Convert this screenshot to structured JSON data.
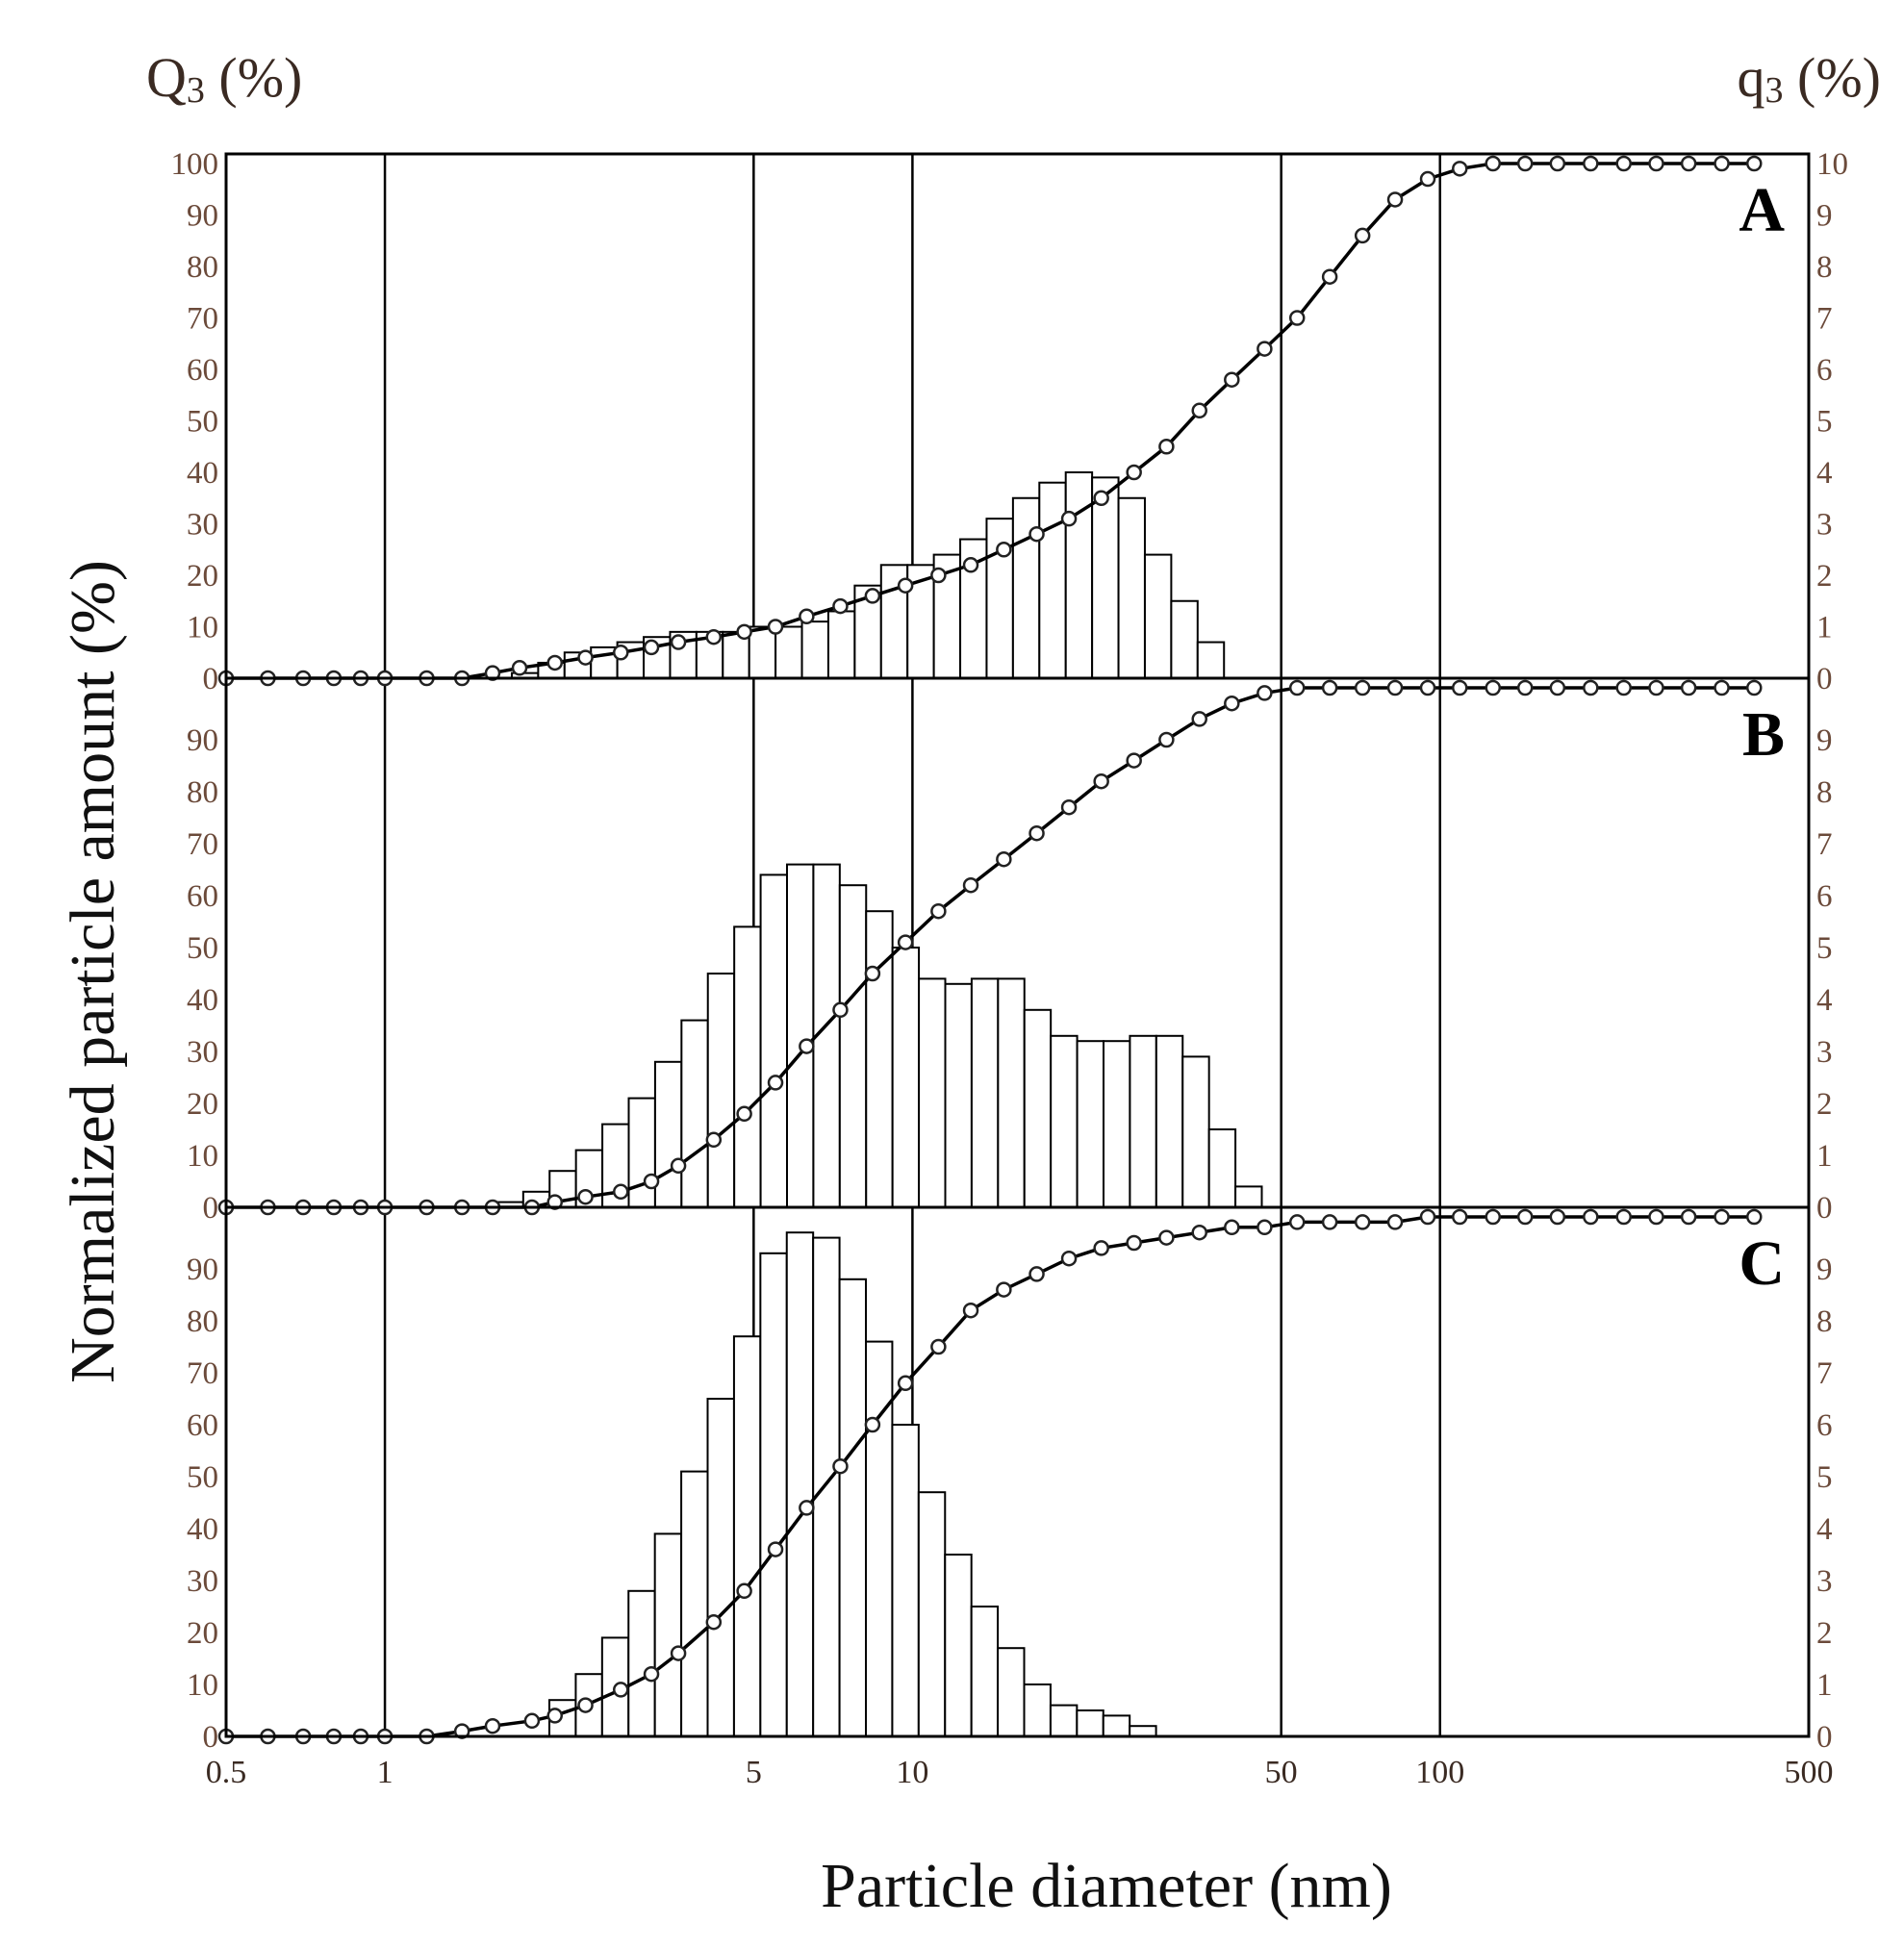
{
  "chart_data": {
    "type": "bar+line",
    "xlabel": "Particle diameter (nm)",
    "ylabel": "Normalized particle amount (%)",
    "left_axis_title": "Q3 (%)",
    "left_axis_title_main": "Q",
    "left_axis_title_sub": "3",
    "left_axis_title_rest": " (%)",
    "right_axis_title_main": "q",
    "right_axis_title_sub": "3",
    "right_axis_title_rest": " (%)",
    "x_scale": "log",
    "xlim": [
      0.5,
      500
    ],
    "x_ticks": [
      0.5,
      1,
      5,
      10,
      50,
      100,
      500
    ],
    "x_tick_labels": [
      "0.5",
      "1",
      "5",
      "10",
      "50",
      "100",
      "500"
    ],
    "x_gridlines": [
      1,
      5,
      10,
      50,
      100
    ],
    "panels": [
      {
        "label": "A",
        "ylim": [
          0,
          100
        ],
        "left_ticks": [
          "0",
          "10",
          "20",
          "30",
          "40",
          "50",
          "60",
          "70",
          "80",
          "90",
          "100"
        ],
        "right_ticks": [
          "0",
          "1",
          "2",
          "3",
          "4",
          "5",
          "6",
          "7",
          "8",
          "9",
          "10"
        ],
        "histogram_q3": [
          0.1,
          0.3,
          0.5,
          0.6,
          0.7,
          0.8,
          0.9,
          0.9,
          0.9,
          1.0,
          1.0,
          1.1,
          1.3,
          1.8,
          2.2,
          2.2,
          2.4,
          2.7,
          3.1,
          3.5,
          3.8,
          4.0,
          3.9,
          3.5,
          2.4,
          1.5,
          0.7
        ],
        "cumulative_Q3": [
          [
            0.5,
            0
          ],
          [
            0.6,
            0
          ],
          [
            0.7,
            0
          ],
          [
            0.8,
            0
          ],
          [
            0.9,
            0
          ],
          [
            1.0,
            0
          ],
          [
            1.2,
            0
          ],
          [
            1.4,
            0
          ],
          [
            1.6,
            1
          ],
          [
            1.8,
            2
          ],
          [
            2.1,
            3
          ],
          [
            2.4,
            4
          ],
          [
            2.8,
            5
          ],
          [
            3.2,
            6
          ],
          [
            3.6,
            7
          ],
          [
            4.2,
            8
          ],
          [
            4.8,
            9
          ],
          [
            5.5,
            10
          ],
          [
            6.3,
            12
          ],
          [
            7.3,
            14
          ],
          [
            8.4,
            16
          ],
          [
            9.7,
            18
          ],
          [
            11.2,
            20
          ],
          [
            12.9,
            22
          ],
          [
            14.9,
            25
          ],
          [
            17.2,
            28
          ],
          [
            19.8,
            31
          ],
          [
            22.8,
            35
          ],
          [
            26.3,
            40
          ],
          [
            30.3,
            45
          ],
          [
            35,
            52
          ],
          [
            40.3,
            58
          ],
          [
            46.5,
            64
          ],
          [
            53.6,
            70
          ],
          [
            61.8,
            78
          ],
          [
            71.3,
            86
          ],
          [
            82.2,
            93
          ],
          [
            94.8,
            97
          ],
          [
            109,
            99
          ],
          [
            126,
            100
          ],
          [
            145,
            100
          ],
          [
            167,
            100
          ],
          [
            193,
            100
          ],
          [
            223,
            100
          ],
          [
            257,
            100
          ],
          [
            296,
            100
          ],
          [
            342,
            100
          ],
          [
            394,
            100
          ]
        ]
      },
      {
        "label": "B",
        "ylim": [
          0,
          100
        ],
        "left_ticks": [
          "0",
          "10",
          "20",
          "30",
          "40",
          "50",
          "60",
          "70",
          "80",
          "90"
        ],
        "right_ticks": [
          "0",
          "1",
          "2",
          "3",
          "4",
          "5",
          "6",
          "7",
          "8",
          "9"
        ],
        "histogram_q3": [
          0.1,
          0.3,
          0.7,
          1.1,
          1.6,
          2.1,
          2.8,
          3.6,
          4.5,
          5.4,
          6.4,
          6.6,
          6.6,
          6.2,
          5.7,
          5.0,
          4.4,
          4.3,
          4.4,
          4.4,
          3.8,
          3.3,
          3.2,
          3.2,
          3.3,
          3.3,
          2.9,
          1.5,
          0.4
        ],
        "cumulative_Q3": [
          [
            0.5,
            0
          ],
          [
            0.6,
            0
          ],
          [
            0.7,
            0
          ],
          [
            0.8,
            0
          ],
          [
            0.9,
            0
          ],
          [
            1.0,
            0
          ],
          [
            1.2,
            0
          ],
          [
            1.4,
            0
          ],
          [
            1.6,
            0
          ],
          [
            1.9,
            0
          ],
          [
            2.1,
            1
          ],
          [
            2.4,
            2
          ],
          [
            2.8,
            3
          ],
          [
            3.2,
            5
          ],
          [
            3.6,
            8
          ],
          [
            4.2,
            13
          ],
          [
            4.8,
            18
          ],
          [
            5.5,
            24
          ],
          [
            6.3,
            31
          ],
          [
            7.3,
            38
          ],
          [
            8.4,
            45
          ],
          [
            9.7,
            51
          ],
          [
            11.2,
            57
          ],
          [
            12.9,
            62
          ],
          [
            14.9,
            67
          ],
          [
            17.2,
            72
          ],
          [
            19.8,
            77
          ],
          [
            22.8,
            82
          ],
          [
            26.3,
            86
          ],
          [
            30.3,
            90
          ],
          [
            35,
            94
          ],
          [
            40.3,
            97
          ],
          [
            46.5,
            99
          ],
          [
            53.6,
            100
          ],
          [
            61.8,
            100
          ],
          [
            71.3,
            100
          ],
          [
            82.2,
            100
          ],
          [
            94.8,
            100
          ],
          [
            109,
            100
          ],
          [
            126,
            100
          ],
          [
            145,
            100
          ],
          [
            167,
            100
          ],
          [
            193,
            100
          ],
          [
            223,
            100
          ],
          [
            257,
            100
          ],
          [
            296,
            100
          ],
          [
            342,
            100
          ],
          [
            394,
            100
          ]
        ]
      },
      {
        "label": "C",
        "ylim": [
          0,
          100
        ],
        "left_ticks": [
          "0",
          "10",
          "20",
          "30",
          "40",
          "50",
          "60",
          "70",
          "80",
          "90"
        ],
        "right_ticks": [
          "0",
          "1",
          "2",
          "3",
          "4",
          "5",
          "6",
          "7",
          "8",
          "9"
        ],
        "histogram_q3": [
          0.7,
          1.2,
          1.9,
          2.8,
          3.9,
          5.1,
          6.5,
          7.7,
          9.3,
          9.7,
          9.6,
          8.8,
          7.6,
          6.0,
          4.7,
          3.5,
          2.5,
          1.7,
          1.0,
          0.6,
          0.5,
          0.4,
          0.2
        ],
        "cumulative_Q3": [
          [
            0.5,
            0
          ],
          [
            0.6,
            0
          ],
          [
            0.7,
            0
          ],
          [
            0.8,
            0
          ],
          [
            0.9,
            0
          ],
          [
            1.0,
            0
          ],
          [
            1.2,
            0
          ],
          [
            1.4,
            1
          ],
          [
            1.6,
            2
          ],
          [
            1.9,
            3
          ],
          [
            2.1,
            4
          ],
          [
            2.4,
            6
          ],
          [
            2.8,
            9
          ],
          [
            3.2,
            12
          ],
          [
            3.6,
            16
          ],
          [
            4.2,
            22
          ],
          [
            4.8,
            28
          ],
          [
            5.5,
            36
          ],
          [
            6.3,
            44
          ],
          [
            7.3,
            52
          ],
          [
            8.4,
            60
          ],
          [
            9.7,
            68
          ],
          [
            11.2,
            75
          ],
          [
            12.9,
            82
          ],
          [
            14.9,
            86
          ],
          [
            17.2,
            89
          ],
          [
            19.8,
            92
          ],
          [
            22.8,
            94
          ],
          [
            26.3,
            95
          ],
          [
            30.3,
            96
          ],
          [
            35,
            97
          ],
          [
            40.3,
            98
          ],
          [
            46.5,
            98
          ],
          [
            53.6,
            99
          ],
          [
            61.8,
            99
          ],
          [
            71.3,
            99
          ],
          [
            82.2,
            99
          ],
          [
            94.8,
            100
          ],
          [
            109,
            100
          ],
          [
            126,
            100
          ],
          [
            145,
            100
          ],
          [
            167,
            100
          ],
          [
            193,
            100
          ],
          [
            223,
            100
          ],
          [
            257,
            100
          ],
          [
            296,
            100
          ],
          [
            342,
            100
          ],
          [
            394,
            100
          ]
        ]
      }
    ]
  }
}
